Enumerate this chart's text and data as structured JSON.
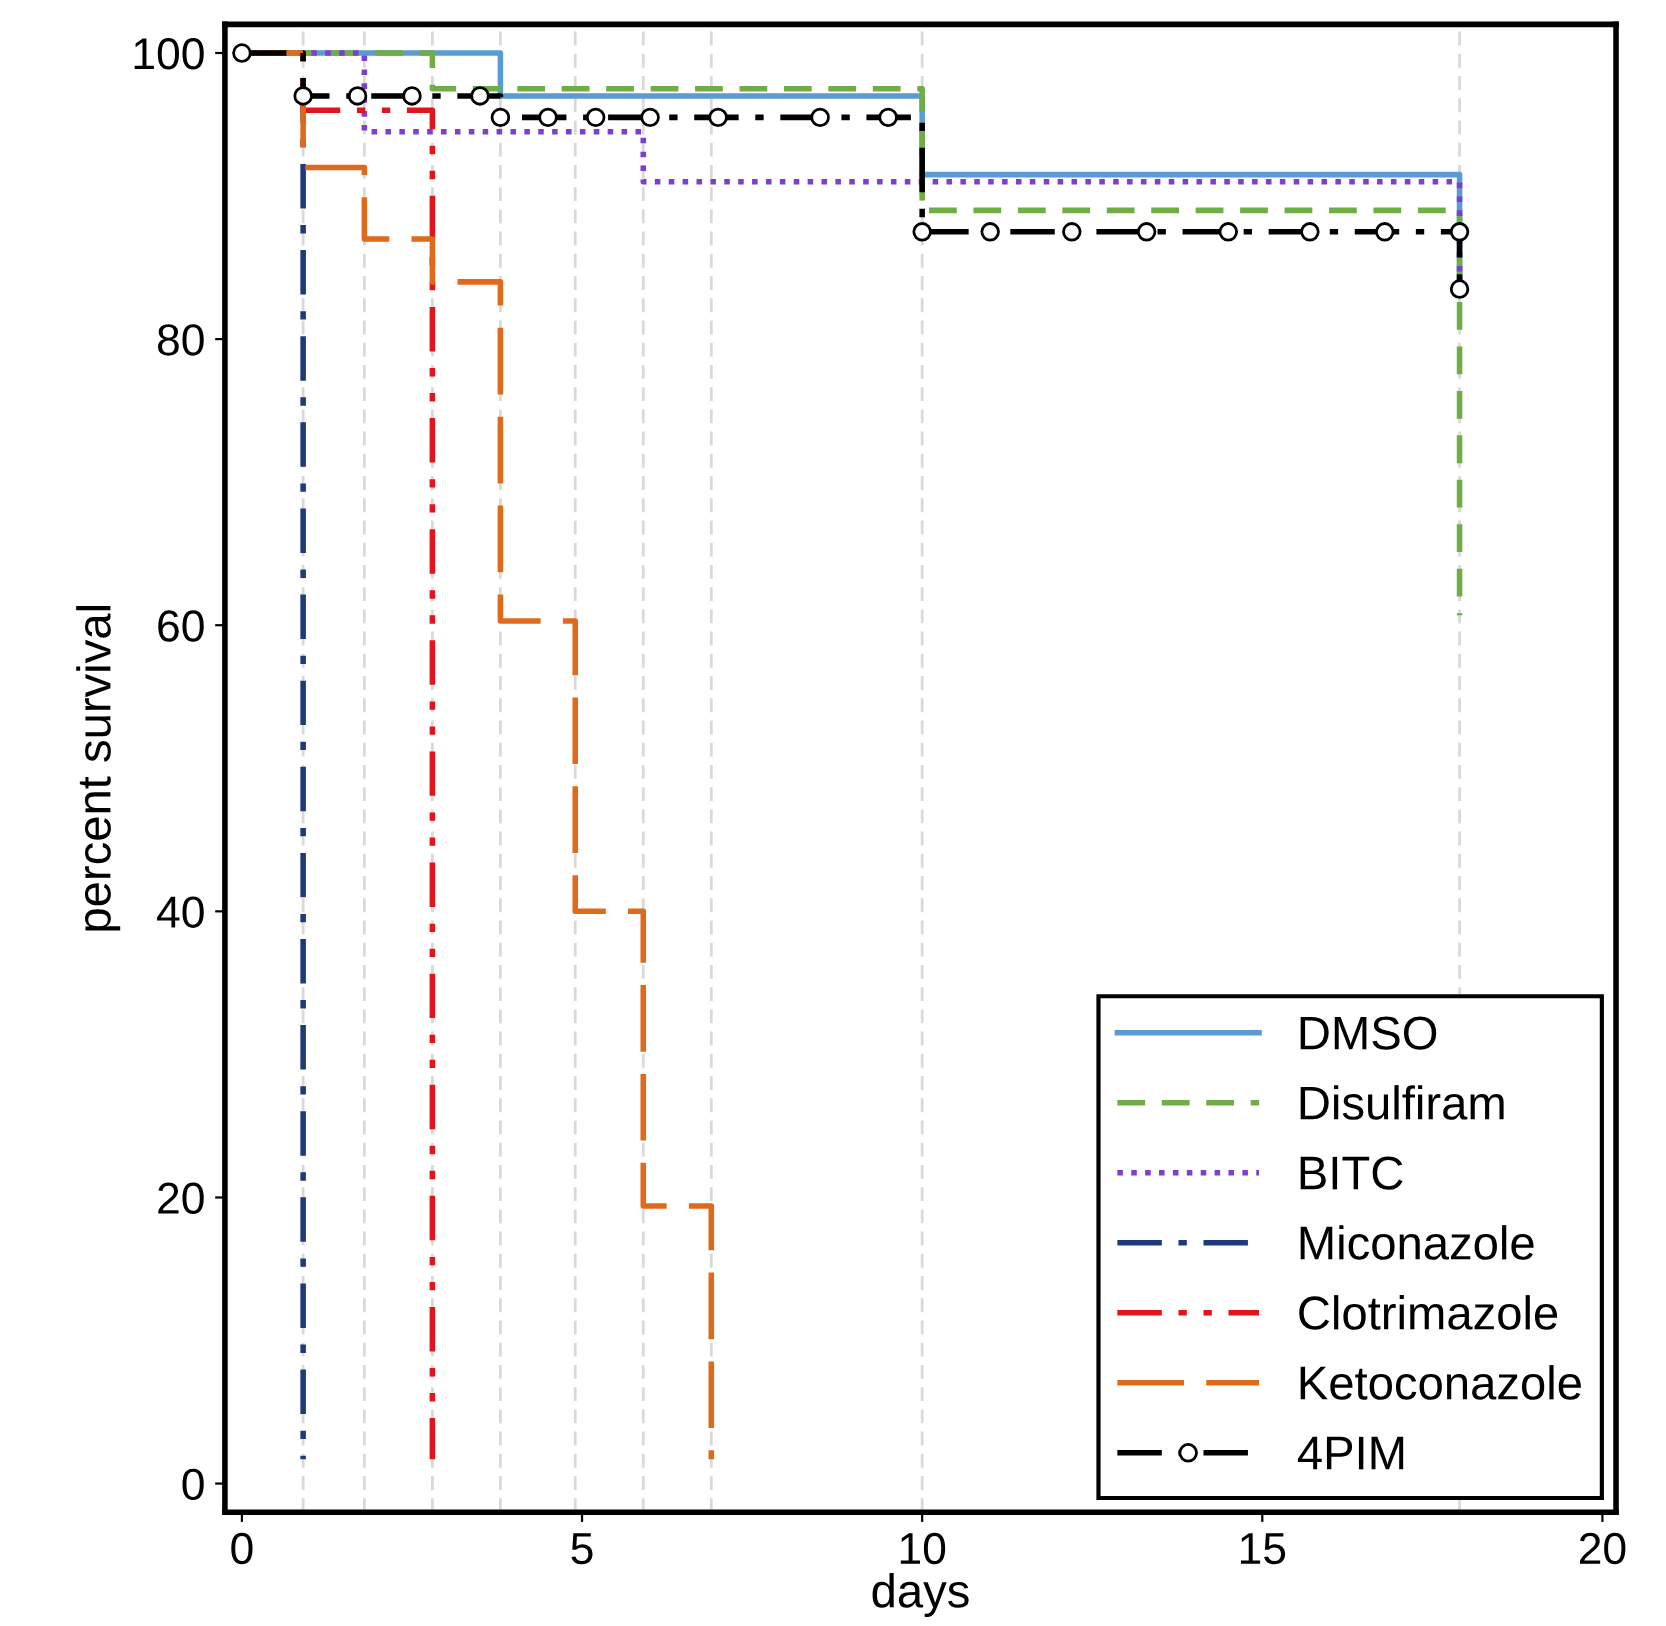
{
  "chart_data": {
    "type": "step",
    "xlabel": "days",
    "ylabel": "percent survival",
    "xlim": [
      -0.25,
      20.2
    ],
    "ylim": [
      -2,
      102
    ],
    "xticks": [
      0,
      5,
      10,
      15,
      20
    ],
    "yticks": [
      0,
      20,
      40,
      60,
      80,
      100
    ],
    "grid": false,
    "legend": "bottom right",
    "ref_lines": [
      {
        "axis": "x",
        "value": 0.9,
        "color": "#d9d9d9",
        "line_style": "dashed"
      },
      {
        "axis": "x",
        "value": 1.8,
        "color": "#d9d9d9",
        "line_style": "dashed"
      },
      {
        "axis": "x",
        "value": 2.8,
        "color": "#d9d9d9",
        "line_style": "dashed"
      },
      {
        "axis": "x",
        "value": 3.8,
        "color": "#d9d9d9",
        "line_style": "dashed"
      },
      {
        "axis": "x",
        "value": 4.9,
        "color": "#d9d9d9",
        "line_style": "dashed"
      },
      {
        "axis": "x",
        "value": 5.9,
        "color": "#d9d9d9",
        "line_style": "dashed"
      },
      {
        "axis": "x",
        "value": 6.9,
        "color": "#d9d9d9",
        "line_style": "dashed"
      },
      {
        "axis": "x",
        "value": 10,
        "color": "#d9d9d9",
        "line_style": "dashed"
      },
      {
        "axis": "x",
        "value": 17.9,
        "color": "#d9d9d9",
        "line_style": "dashed"
      }
    ],
    "series": [
      {
        "name": "DMSO",
        "color": "#5b9bd5",
        "line_style": "solid",
        "x": [
          0,
          3.8,
          10,
          17.9,
          17.9
        ],
        "values": [
          100,
          97,
          91.5,
          91.5,
          84
        ]
      },
      {
        "name": "Disulfiram",
        "color": "#70ad47",
        "line_style": "dashed",
        "x": [
          0,
          2.8,
          10,
          17.9,
          17.9
        ],
        "values": [
          100,
          97.5,
          89,
          89,
          60.7
        ]
      },
      {
        "name": "BITC",
        "color": "#7e3fd0",
        "line_style": "dotted",
        "x": [
          0,
          1.8,
          5.9,
          17.9,
          17.9
        ],
        "values": [
          100,
          94.5,
          91,
          91,
          84
        ]
      },
      {
        "name": "Miconazole",
        "color": "#1f3a7a",
        "line_style": "dashdot",
        "x": [
          0,
          0.9,
          0.9
        ],
        "values": [
          100,
          100,
          1.7
        ]
      },
      {
        "name": "Clotrimazole",
        "color": "#e3141b",
        "line_style": "dashdotdot",
        "x": [
          0,
          0.9,
          2.8,
          2.8
        ],
        "values": [
          100,
          96,
          96,
          1.7
        ]
      },
      {
        "name": "Ketoconazole",
        "color": "#e06a1b",
        "line_style": "longdash",
        "x": [
          0,
          0.9,
          1.8,
          2.8,
          3.8,
          4.9,
          5.9,
          6.9,
          6.9
        ],
        "values": [
          100,
          92,
          87,
          84,
          60.3,
          40,
          19.4,
          19.4,
          1.7
        ]
      },
      {
        "name": "4PIM",
        "color": "#000000",
        "line_style": "dashdot",
        "marker": "circle",
        "x": [
          0,
          0.9,
          1.7,
          2.5,
          3.5,
          3.8,
          4.5,
          5.2,
          6,
          7,
          8.5,
          9.5,
          10,
          11,
          12.2,
          13.3,
          14.5,
          15.7,
          16.8,
          17.9,
          17.9
        ],
        "values": [
          100,
          97,
          97,
          97,
          97,
          95.5,
          95.5,
          95.5,
          95.5,
          95.5,
          95.5,
          95.5,
          87.5,
          87.5,
          87.5,
          87.5,
          87.5,
          87.5,
          87.5,
          87.5,
          83.5
        ]
      }
    ]
  }
}
